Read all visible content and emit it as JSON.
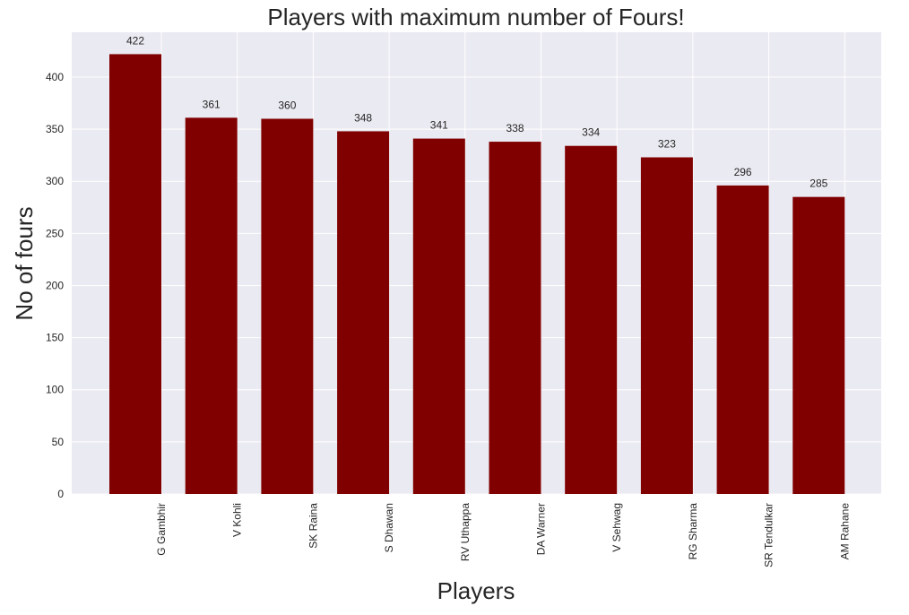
{
  "chart_data": {
    "type": "bar",
    "title": "Players with maximum number of Fours!",
    "xlabel": "Players",
    "ylabel": "No of fours",
    "categories": [
      "G Gambhir",
      "V Kohli",
      "SK Raina",
      "S Dhawan",
      "RV Uthappa",
      "DA Warner",
      "V Sehwag",
      "RG Sharma",
      "SR Tendulkar",
      "AM Rahane"
    ],
    "values": [
      422,
      361,
      360,
      348,
      341,
      338,
      334,
      323,
      296,
      285
    ],
    "data_labels": [
      "422",
      "361",
      "360",
      "348",
      "341",
      "338",
      "334",
      "323",
      "296",
      "285"
    ],
    "yticks": [
      0,
      50,
      100,
      150,
      200,
      250,
      300,
      350,
      400
    ],
    "ylim": [
      0,
      443
    ],
    "grid": true,
    "colors": {
      "bar": "#800000",
      "plot_background": "#eaeaf2",
      "grid": "#ffffff"
    }
  }
}
